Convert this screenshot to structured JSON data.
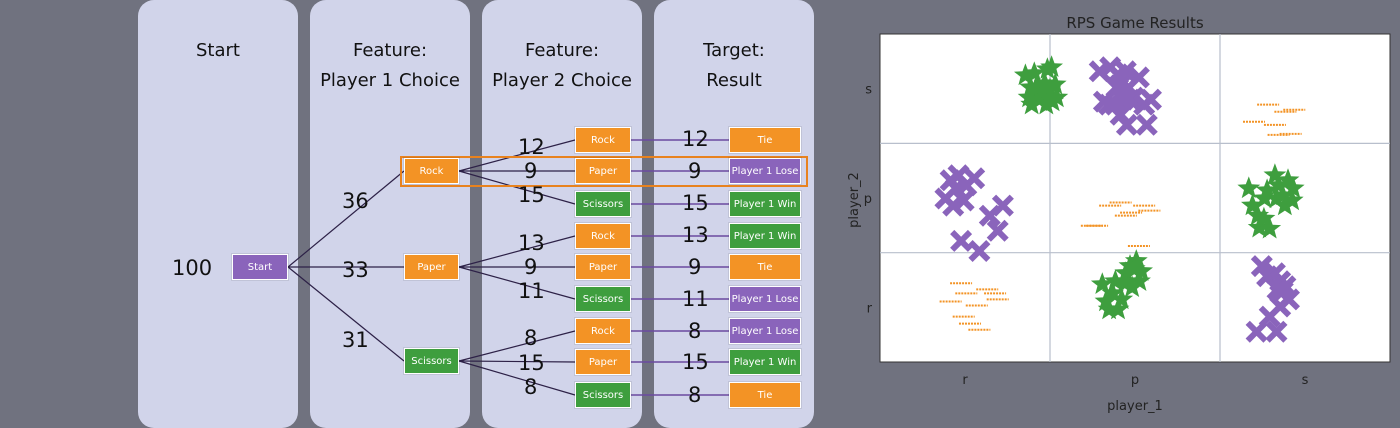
{
  "diagram": {
    "columns": [
      {
        "title": "Start"
      },
      {
        "title": "Feature:\nPlayer 1 Choice"
      },
      {
        "title": "Feature:\nPlayer 2 Choice"
      },
      {
        "title": "Target:\nResult"
      }
    ],
    "root": {
      "label": "Start",
      "count": "100"
    },
    "player1": [
      {
        "label": "Rock",
        "count": "36"
      },
      {
        "label": "Paper",
        "count": "33"
      },
      {
        "label": "Scissors",
        "count": "31"
      }
    ],
    "player2": [
      {
        "label": "Rock",
        "count": "12"
      },
      {
        "label": "Paper",
        "count": "9"
      },
      {
        "label": "Scissors",
        "count": "15"
      },
      {
        "label": "Rock",
        "count": "13"
      },
      {
        "label": "Paper",
        "count": "9"
      },
      {
        "label": "Scissors",
        "count": "11"
      },
      {
        "label": "Rock",
        "count": "8"
      },
      {
        "label": "Paper",
        "count": "15"
      },
      {
        "label": "Scissors",
        "count": "8"
      }
    ],
    "results": [
      {
        "label": "Tie",
        "count": "12"
      },
      {
        "label": "Player 1 Lose",
        "count": "9"
      },
      {
        "label": "Player 1 Win",
        "count": "15"
      },
      {
        "label": "Player 1 Win",
        "count": "13"
      },
      {
        "label": "Tie",
        "count": "9"
      },
      {
        "label": "Player 1 Lose",
        "count": "11"
      },
      {
        "label": "Player 1 Lose",
        "count": "8"
      },
      {
        "label": "Player 1 Win",
        "count": "15"
      },
      {
        "label": "Tie",
        "count": "8"
      }
    ],
    "colors": {
      "panel": "#d1d4ea",
      "orange": "#f39325",
      "purple": "#8a64bb",
      "green": "#3e9e3e",
      "highlight": "#e8821e",
      "edge": "#6a4aa0"
    }
  },
  "chart_data": {
    "type": "scatter",
    "title": "RPS Game Results",
    "xlabel": "player_1",
    "ylabel": "player_2",
    "x_categories": [
      "r",
      "p",
      "s"
    ],
    "y_categories": [
      "r",
      "p",
      "s"
    ],
    "grid": true,
    "series": [
      {
        "marker": "star",
        "color": "#3e9e3e",
        "points": [
          [
            2.78,
            2.84
          ],
          [
            2.88,
            2.72
          ],
          [
            2.95,
            2.86
          ],
          [
            2.85,
            2.62
          ],
          [
            2.9,
            2.55
          ],
          [
            2.97,
            2.7
          ],
          [
            3.02,
            2.72
          ],
          [
            3.05,
            2.6
          ],
          [
            3.1,
            2.68
          ],
          [
            3.15,
            2.76
          ],
          [
            3.2,
            2.9
          ],
          [
            3.28,
            2.92
          ],
          [
            3.25,
            2.7
          ],
          [
            3.35,
            2.75
          ],
          [
            3.38,
            2.62
          ],
          [
            3.3,
            2.58
          ],
          [
            3.22,
            2.62
          ],
          [
            3.18,
            2.55
          ],
          [
            7.05,
            1.72
          ],
          [
            7.12,
            1.55
          ],
          [
            7.22,
            1.45
          ],
          [
            7.35,
            1.62
          ],
          [
            7.4,
            1.7
          ],
          [
            7.55,
            1.85
          ],
          [
            7.58,
            1.62
          ],
          [
            7.62,
            1.75
          ],
          [
            7.7,
            1.65
          ],
          [
            7.74,
            1.55
          ],
          [
            7.8,
            1.8
          ],
          [
            7.88,
            1.6
          ],
          [
            7.9,
            1.72
          ],
          [
            7.25,
            1.33
          ],
          [
            7.45,
            1.32
          ],
          [
            7.34,
            1.42
          ],
          [
            4.25,
            0.77
          ],
          [
            4.32,
            0.6
          ],
          [
            4.45,
            0.68
          ],
          [
            4.5,
            0.8
          ],
          [
            4.62,
            0.62
          ],
          [
            4.7,
            0.88
          ],
          [
            4.78,
            0.95
          ],
          [
            4.82,
            0.74
          ],
          [
            4.9,
            1.0
          ],
          [
            4.96,
            0.8
          ],
          [
            5.0,
            0.9
          ],
          [
            4.55,
            0.52
          ],
          [
            4.38,
            0.52
          ],
          [
            4.86,
            0.92
          ],
          [
            4.68,
            0.78
          ]
        ]
      },
      {
        "marker": "x",
        "color": "#8a64bb",
        "points": [
          [
            4.2,
            2.88
          ],
          [
            4.4,
            2.92
          ],
          [
            4.55,
            2.85
          ],
          [
            4.7,
            2.88
          ],
          [
            4.75,
            2.72
          ],
          [
            4.78,
            2.6
          ],
          [
            4.85,
            2.62
          ],
          [
            4.95,
            2.82
          ],
          [
            4.58,
            2.74
          ],
          [
            4.65,
            2.6
          ],
          [
            4.28,
            2.58
          ],
          [
            4.38,
            2.55
          ],
          [
            4.52,
            2.72
          ],
          [
            4.6,
            2.45
          ],
          [
            5.05,
            2.55
          ],
          [
            5.18,
            2.6
          ],
          [
            4.5,
            2.55
          ],
          [
            4.72,
            2.35
          ],
          [
            5.1,
            2.35
          ],
          [
            1.25,
            1.62
          ],
          [
            1.35,
            1.8
          ],
          [
            1.45,
            1.72
          ],
          [
            1.5,
            1.85
          ],
          [
            1.6,
            1.6
          ],
          [
            1.65,
            1.75
          ],
          [
            1.8,
            1.82
          ],
          [
            1.55,
            1.2
          ],
          [
            1.9,
            1.1
          ],
          [
            2.1,
            1.45
          ],
          [
            2.25,
            1.3
          ],
          [
            2.35,
            1.55
          ],
          [
            1.4,
            1.55
          ],
          [
            7.3,
            0.95
          ],
          [
            7.4,
            0.85
          ],
          [
            7.55,
            0.88
          ],
          [
            7.65,
            0.8
          ],
          [
            7.75,
            0.75
          ],
          [
            7.82,
            0.62
          ],
          [
            7.6,
            0.72
          ],
          [
            7.45,
            0.45
          ],
          [
            7.58,
            0.3
          ],
          [
            7.2,
            0.3
          ],
          [
            7.65,
            0.55
          ],
          [
            7.7,
            0.7
          ]
        ]
      },
      {
        "marker": "dash",
        "color": "#f39325",
        "points": [
          [
            7.15,
            2.38
          ],
          [
            7.42,
            2.55
          ],
          [
            7.55,
            2.35
          ],
          [
            7.62,
            2.25
          ],
          [
            7.75,
            2.48
          ],
          [
            7.85,
            2.26
          ],
          [
            7.92,
            2.5
          ],
          [
            1.65,
            0.68
          ],
          [
            1.85,
            0.56
          ],
          [
            2.05,
            0.72
          ],
          [
            2.25,
            0.62
          ],
          [
            1.35,
            0.6
          ],
          [
            1.55,
            0.78
          ],
          [
            1.72,
            0.38
          ],
          [
            1.9,
            0.32
          ],
          [
            2.2,
            0.68
          ],
          [
            1.6,
            0.45
          ],
          [
            4.05,
            1.35
          ],
          [
            4.15,
            1.35
          ],
          [
            4.4,
            1.55
          ],
          [
            4.6,
            1.58
          ],
          [
            4.8,
            1.48
          ],
          [
            5.05,
            1.55
          ],
          [
            5.15,
            1.5
          ],
          [
            4.95,
            1.15
          ],
          [
            4.7,
            1.45
          ]
        ]
      }
    ]
  }
}
